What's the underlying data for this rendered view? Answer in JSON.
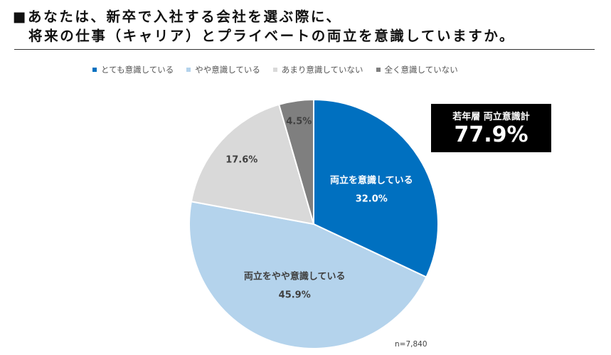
{
  "title": {
    "line1": "■あなたは、新卒で入社する会社を選ぶ際に、",
    "line2": "将来の仕事（キャリア）とプライベートの両立を意識していますか。"
  },
  "callout": {
    "label": "若年層 両立意識計",
    "value": "77.9%"
  },
  "note": "n=7,840",
  "chart_data": {
    "type": "pie",
    "categories": [
      "とても意識している",
      "やや意識している",
      "あまり意識していない",
      "全く意識していない"
    ],
    "values": [
      32.0,
      45.9,
      17.6,
      4.5
    ],
    "value_labels": [
      "32.0%",
      "45.9%",
      "17.6%",
      "4.5%"
    ],
    "colors": [
      "#0070c0",
      "#b4d3ec",
      "#d9d9d9",
      "#7f7f7f"
    ],
    "annotations": [
      "両立を意識している",
      "両立をやや意識している",
      "",
      ""
    ],
    "start": "12 o'clock, clockwise",
    "legend": "top"
  }
}
